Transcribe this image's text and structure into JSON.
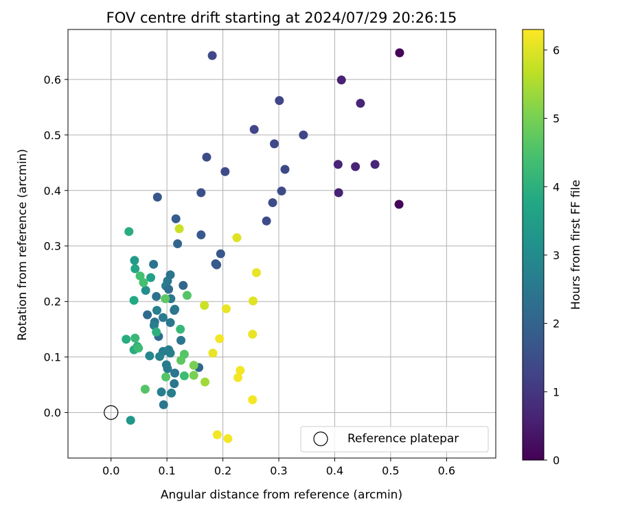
{
  "chart_data": {
    "type": "scatter",
    "title": "FOV centre drift starting at 2024/07/29 20:26:15",
    "xlabel": "Angular distance from reference (arcmin)",
    "ylabel": "Rotation from reference (arcmin)",
    "xlim": [
      -0.077,
      0.688
    ],
    "ylim": [
      -0.082,
      0.69
    ],
    "xticks": [
      0.0,
      0.1,
      0.2,
      0.3,
      0.4,
      0.5,
      0.6
    ],
    "xtick_labels": [
      "0.0",
      "0.1",
      "0.2",
      "0.3",
      "0.4",
      "0.5",
      "0.6"
    ],
    "yticks": [
      0.0,
      0.1,
      0.2,
      0.3,
      0.4,
      0.5,
      0.6
    ],
    "ytick_labels": [
      "0.0",
      "0.1",
      "0.2",
      "0.3",
      "0.4",
      "0.5",
      "0.6"
    ],
    "grid": true,
    "legend_position": "lower-right",
    "legend": [
      {
        "label": "Reference platepar",
        "marker": "open-circle"
      }
    ],
    "reference_point": {
      "x": 0.0,
      "y": 0.0
    },
    "colorbar": {
      "label": "Hours from first FF file",
      "range": [
        0,
        6.3
      ],
      "ticks": [
        0,
        1,
        2,
        3,
        4,
        5,
        6
      ],
      "tick_labels": [
        "0",
        "1",
        "2",
        "3",
        "4",
        "5",
        "6"
      ],
      "colormap": "viridis"
    },
    "points": [
      {
        "x": 0.516,
        "y": 0.648,
        "c": 0.05
      },
      {
        "x": 0.515,
        "y": 0.375,
        "c": 0.05
      },
      {
        "x": 0.412,
        "y": 0.599,
        "c": 0.6
      },
      {
        "x": 0.446,
        "y": 0.557,
        "c": 0.65
      },
      {
        "x": 0.406,
        "y": 0.447,
        "c": 0.65
      },
      {
        "x": 0.437,
        "y": 0.443,
        "c": 0.65
      },
      {
        "x": 0.472,
        "y": 0.447,
        "c": 0.65
      },
      {
        "x": 0.407,
        "y": 0.396,
        "c": 0.6
      },
      {
        "x": 0.181,
        "y": 0.643,
        "c": 1.35
      },
      {
        "x": 0.301,
        "y": 0.562,
        "c": 1.3
      },
      {
        "x": 0.256,
        "y": 0.51,
        "c": 1.3
      },
      {
        "x": 0.344,
        "y": 0.5,
        "c": 1.3
      },
      {
        "x": 0.292,
        "y": 0.484,
        "c": 1.35
      },
      {
        "x": 0.171,
        "y": 0.46,
        "c": 1.45
      },
      {
        "x": 0.204,
        "y": 0.434,
        "c": 1.4
      },
      {
        "x": 0.311,
        "y": 0.438,
        "c": 1.4
      },
      {
        "x": 0.305,
        "y": 0.399,
        "c": 1.4
      },
      {
        "x": 0.289,
        "y": 0.378,
        "c": 1.45
      },
      {
        "x": 0.278,
        "y": 0.345,
        "c": 1.45
      },
      {
        "x": 0.161,
        "y": 0.396,
        "c": 1.55
      },
      {
        "x": 0.083,
        "y": 0.388,
        "c": 1.7
      },
      {
        "x": 0.116,
        "y": 0.349,
        "c": 1.85
      },
      {
        "x": 0.161,
        "y": 0.32,
        "c": 1.75
      },
      {
        "x": 0.119,
        "y": 0.304,
        "c": 2.05
      },
      {
        "x": 0.196,
        "y": 0.286,
        "c": 1.7
      },
      {
        "x": 0.187,
        "y": 0.268,
        "c": 1.75
      },
      {
        "x": 0.189,
        "y": 0.266,
        "c": 1.75
      },
      {
        "x": 0.076,
        "y": 0.267,
        "c": 2.4
      },
      {
        "x": 0.106,
        "y": 0.248,
        "c": 2.4
      },
      {
        "x": 0.101,
        "y": 0.237,
        "c": 2.5
      },
      {
        "x": 0.098,
        "y": 0.228,
        "c": 2.6
      },
      {
        "x": 0.103,
        "y": 0.222,
        "c": 2.3
      },
      {
        "x": 0.129,
        "y": 0.229,
        "c": 2.1
      },
      {
        "x": 0.081,
        "y": 0.209,
        "c": 2.3
      },
      {
        "x": 0.107,
        "y": 0.205,
        "c": 2.5
      },
      {
        "x": 0.113,
        "y": 0.184,
        "c": 2.35
      },
      {
        "x": 0.114,
        "y": 0.186,
        "c": 2.5
      },
      {
        "x": 0.065,
        "y": 0.176,
        "c": 2.2
      },
      {
        "x": 0.082,
        "y": 0.184,
        "c": 2.7
      },
      {
        "x": 0.093,
        "y": 0.171,
        "c": 2.55
      },
      {
        "x": 0.078,
        "y": 0.163,
        "c": 2.4
      },
      {
        "x": 0.077,
        "y": 0.157,
        "c": 2.7
      },
      {
        "x": 0.106,
        "y": 0.162,
        "c": 2.5
      },
      {
        "x": 0.085,
        "y": 0.137,
        "c": 2.2
      },
      {
        "x": 0.125,
        "y": 0.13,
        "c": 2.45
      },
      {
        "x": 0.093,
        "y": 0.11,
        "c": 2.6
      },
      {
        "x": 0.103,
        "y": 0.113,
        "c": 2.7
      },
      {
        "x": 0.106,
        "y": 0.107,
        "c": 2.7
      },
      {
        "x": 0.087,
        "y": 0.101,
        "c": 2.8
      },
      {
        "x": 0.069,
        "y": 0.102,
        "c": 2.9
      },
      {
        "x": 0.099,
        "y": 0.086,
        "c": 2.6
      },
      {
        "x": 0.101,
        "y": 0.079,
        "c": 2.6
      },
      {
        "x": 0.114,
        "y": 0.071,
        "c": 2.45
      },
      {
        "x": 0.157,
        "y": 0.081,
        "c": 2.1
      },
      {
        "x": 0.113,
        "y": 0.052,
        "c": 2.5
      },
      {
        "x": 0.09,
        "y": 0.037,
        "c": 2.7
      },
      {
        "x": 0.108,
        "y": 0.035,
        "c": 2.7
      },
      {
        "x": 0.094,
        "y": 0.014,
        "c": 2.5
      },
      {
        "x": 0.035,
        "y": -0.014,
        "c": 3.3
      },
      {
        "x": 0.062,
        "y": 0.22,
        "c": 3.1
      },
      {
        "x": 0.042,
        "y": 0.274,
        "c": 3.4
      },
      {
        "x": 0.043,
        "y": 0.259,
        "c": 3.7
      },
      {
        "x": 0.032,
        "y": 0.326,
        "c": 3.9
      },
      {
        "x": 0.052,
        "y": 0.246,
        "c": 4.4
      },
      {
        "x": 0.058,
        "y": 0.234,
        "c": 4.4
      },
      {
        "x": 0.071,
        "y": 0.243,
        "c": 3.6
      },
      {
        "x": 0.041,
        "y": 0.202,
        "c": 3.8
      },
      {
        "x": 0.097,
        "y": 0.205,
        "c": 4.7
      },
      {
        "x": 0.136,
        "y": 0.211,
        "c": 4.6
      },
      {
        "x": 0.081,
        "y": 0.145,
        "c": 4.0
      },
      {
        "x": 0.124,
        "y": 0.15,
        "c": 4.2
      },
      {
        "x": 0.027,
        "y": 0.132,
        "c": 3.9
      },
      {
        "x": 0.043,
        "y": 0.134,
        "c": 4.2
      },
      {
        "x": 0.041,
        "y": 0.113,
        "c": 3.9
      },
      {
        "x": 0.047,
        "y": 0.119,
        "c": 4.0
      },
      {
        "x": 0.049,
        "y": 0.116,
        "c": 4.3
      },
      {
        "x": 0.131,
        "y": 0.105,
        "c": 4.6
      },
      {
        "x": 0.125,
        "y": 0.094,
        "c": 4.7
      },
      {
        "x": 0.148,
        "y": 0.085,
        "c": 5.0
      },
      {
        "x": 0.131,
        "y": 0.066,
        "c": 4.3
      },
      {
        "x": 0.098,
        "y": 0.064,
        "c": 4.6
      },
      {
        "x": 0.148,
        "y": 0.067,
        "c": 5.0
      },
      {
        "x": 0.168,
        "y": 0.055,
        "c": 5.4
      },
      {
        "x": 0.061,
        "y": 0.042,
        "c": 4.6
      },
      {
        "x": 0.122,
        "y": 0.331,
        "c": 5.8
      },
      {
        "x": 0.225,
        "y": 0.315,
        "c": 6.0
      },
      {
        "x": 0.26,
        "y": 0.252,
        "c": 6.1
      },
      {
        "x": 0.254,
        "y": 0.201,
        "c": 6.0
      },
      {
        "x": 0.167,
        "y": 0.193,
        "c": 5.8
      },
      {
        "x": 0.206,
        "y": 0.187,
        "c": 6.1
      },
      {
        "x": 0.253,
        "y": 0.141,
        "c": 6.1
      },
      {
        "x": 0.194,
        "y": 0.133,
        "c": 6.2
      },
      {
        "x": 0.182,
        "y": 0.107,
        "c": 6.1
      },
      {
        "x": 0.231,
        "y": 0.076,
        "c": 6.2
      },
      {
        "x": 0.227,
        "y": 0.063,
        "c": 6.2
      },
      {
        "x": 0.253,
        "y": 0.023,
        "c": 6.2
      },
      {
        "x": 0.19,
        "y": -0.04,
        "c": 6.2
      },
      {
        "x": 0.209,
        "y": -0.047,
        "c": 6.2
      }
    ]
  }
}
